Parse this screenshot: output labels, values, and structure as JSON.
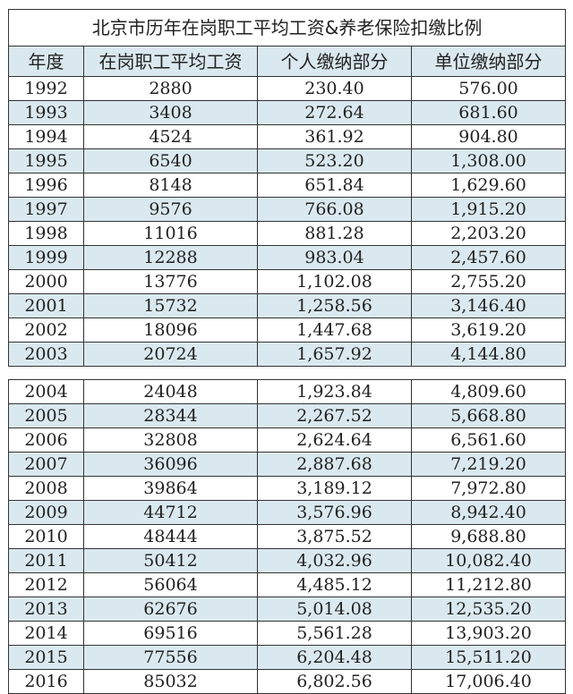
{
  "title": "北京市历年在岗职工平均工资&养老保险扣缴比例",
  "headers": [
    "年度",
    "在岗职工平均工资",
    "个人缴纳部分",
    "单位缴纳部分"
  ],
  "colors": {
    "stripe": "#dae9ef",
    "border": "#333333"
  },
  "section1": [
    [
      "1992",
      "2880",
      "230.40",
      "576.00"
    ],
    [
      "1993",
      "3408",
      "272.64",
      "681.60"
    ],
    [
      "1994",
      "4524",
      "361.92",
      "904.80"
    ],
    [
      "1995",
      "6540",
      "523.20",
      "1,308.00"
    ],
    [
      "1996",
      "8148",
      "651.84",
      "1,629.60"
    ],
    [
      "1997",
      "9576",
      "766.08",
      "1,915.20"
    ],
    [
      "1998",
      "11016",
      "881.28",
      "2,203.20"
    ],
    [
      "1999",
      "12288",
      "983.04",
      "2,457.60"
    ],
    [
      "2000",
      "13776",
      "1,102.08",
      "2,755.20"
    ],
    [
      "2001",
      "15732",
      "1,258.56",
      "3,146.40"
    ],
    [
      "2002",
      "18096",
      "1,447.68",
      "3,619.20"
    ],
    [
      "2003",
      "20724",
      "1,657.92",
      "4,144.80"
    ]
  ],
  "section2": [
    [
      "2004",
      "24048",
      "1,923.84",
      "4,809.60"
    ],
    [
      "2005",
      "28344",
      "2,267.52",
      "5,668.80"
    ],
    [
      "2006",
      "32808",
      "2,624.64",
      "6,561.60"
    ],
    [
      "2007",
      "36096",
      "2,887.68",
      "7,219.20"
    ],
    [
      "2008",
      "39864",
      "3,189.12",
      "7,972.80"
    ],
    [
      "2009",
      "44712",
      "3,576.96",
      "8,942.40"
    ],
    [
      "2010",
      "48444",
      "3,875.52",
      "9,688.80"
    ],
    [
      "2011",
      "50412",
      "4,032.96",
      "10,082.40"
    ],
    [
      "2012",
      "56064",
      "4,485.12",
      "11,212.80"
    ],
    [
      "2013",
      "62676",
      "5,014.08",
      "12,535.20"
    ],
    [
      "2014",
      "69516",
      "5,561.28",
      "13,903.20"
    ],
    [
      "2015",
      "77556",
      "6,204.48",
      "15,511.20"
    ],
    [
      "2016",
      "85032",
      "6,802.56",
      "17,006.40"
    ]
  ]
}
